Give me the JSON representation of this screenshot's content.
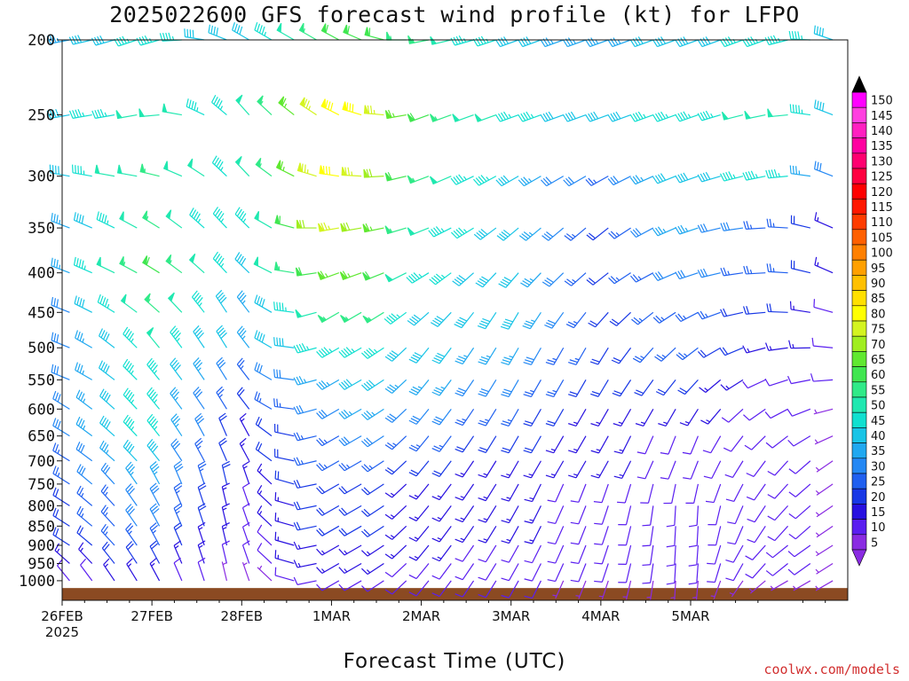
{
  "title": "2025022600 GFS forecast wind profile (kt) for LFPO",
  "credit": "coolwx.com/models",
  "colors": {
    "background": "#ffffff",
    "ground": "#8b4a22",
    "axis": "#111111"
  },
  "chart_data": {
    "type": "wind_barb_profile",
    "title": "2025022600 GFS forecast wind profile (kt) for LFPO",
    "xlabel": "Forecast Time (UTC)",
    "ylabel": "",
    "x_ticks": [
      "26FEB\n2025",
      "27FEB",
      "28FEB",
      "1MAR",
      "2MAR",
      "3MAR",
      "4MAR",
      "5MAR"
    ],
    "x_range_hours": [
      0,
      210
    ],
    "x_step_hours": 6,
    "y_axis": "pressure (hPa), log scale, inverted",
    "y_ticks": [
      200,
      250,
      300,
      350,
      400,
      450,
      500,
      550,
      600,
      650,
      700,
      750,
      800,
      850,
      900,
      950,
      1000
    ],
    "ylim": [
      1060,
      200
    ],
    "surface_pressure_hPa": 1022,
    "colorbar": {
      "units": "kt",
      "levels": [
        5,
        10,
        15,
        20,
        25,
        30,
        35,
        40,
        45,
        50,
        55,
        60,
        65,
        70,
        75,
        80,
        85,
        90,
        95,
        100,
        105,
        110,
        115,
        120,
        125,
        130,
        135,
        140,
        145,
        150
      ],
      "colors": [
        "#8a2be2",
        "#5a1ef0",
        "#2810e0",
        "#1838e6",
        "#2060f0",
        "#2488f4",
        "#20a8f0",
        "#18c4e6",
        "#10e0d0",
        "#20e8b0",
        "#30ea88",
        "#40e650",
        "#60e830",
        "#a0ee20",
        "#d4f420",
        "#ffff00",
        "#ffe000",
        "#ffc000",
        "#ffa000",
        "#ff8000",
        "#ff6000",
        "#ff3c00",
        "#ff1800",
        "#ff0000",
        "#ff0040",
        "#ff0070",
        "#ff00a0",
        "#ff20c0",
        "#ff40e0",
        "#ff00ff"
      ]
    },
    "wind_keyframes": {
      "description": "speed (kt) and direction (deg, meteorological from) at selected forecast hours; interpolated between keyframes",
      "levels_hPa": [
        200,
        250,
        300,
        350,
        400,
        450,
        500,
        550,
        600,
        650,
        700,
        750,
        800,
        850,
        900,
        950,
        1000
      ],
      "hours": [
        0,
        24,
        48,
        72,
        84,
        96,
        120,
        144,
        168,
        192,
        210
      ],
      "speed": [
        [
          35,
          45,
          40,
          60,
          60,
          55,
          40,
          35,
          40,
          45,
          40
        ],
        [
          40,
          50,
          45,
          80,
          80,
          60,
          45,
          40,
          45,
          50,
          35
        ],
        [
          38,
          55,
          45,
          80,
          75,
          55,
          40,
          25,
          40,
          45,
          25
        ],
        [
          35,
          55,
          40,
          75,
          70,
          50,
          40,
          20,
          35,
          25,
          15
        ],
        [
          35,
          60,
          40,
          65,
          65,
          45,
          40,
          20,
          30,
          25,
          10
        ],
        [
          30,
          55,
          35,
          55,
          55,
          40,
          40,
          20,
          25,
          20,
          10
        ],
        [
          30,
          50,
          35,
          45,
          45,
          40,
          35,
          20,
          25,
          15,
          10
        ],
        [
          30,
          45,
          25,
          35,
          40,
          35,
          30,
          20,
          20,
          10,
          10
        ],
        [
          30,
          45,
          20,
          30,
          35,
          30,
          25,
          15,
          15,
          10,
          5
        ],
        [
          30,
          45,
          15,
          25,
          30,
          25,
          20,
          15,
          10,
          10,
          5
        ],
        [
          25,
          40,
          15,
          25,
          25,
          20,
          15,
          15,
          10,
          10,
          5
        ],
        [
          25,
          35,
          15,
          20,
          20,
          15,
          15,
          10,
          10,
          10,
          5
        ],
        [
          20,
          30,
          10,
          20,
          20,
          15,
          15,
          10,
          10,
          10,
          5
        ],
        [
          20,
          30,
          10,
          20,
          20,
          15,
          15,
          10,
          10,
          10,
          5
        ],
        [
          20,
          25,
          10,
          15,
          15,
          15,
          10,
          10,
          10,
          10,
          5
        ],
        [
          15,
          20,
          10,
          15,
          15,
          10,
          10,
          10,
          10,
          10,
          5
        ],
        [
          10,
          15,
          5,
          10,
          10,
          10,
          10,
          5,
          5,
          5,
          5
        ]
      ],
      "direction": [
        [
          260,
          250,
          300,
          300,
          290,
          260,
          250,
          250,
          250,
          250,
          300
        ],
        [
          260,
          260,
          320,
          300,
          280,
          250,
          250,
          250,
          250,
          260,
          300
        ],
        [
          280,
          280,
          320,
          280,
          270,
          250,
          240,
          240,
          250,
          260,
          300
        ],
        [
          290,
          300,
          320,
          260,
          260,
          250,
          230,
          230,
          250,
          270,
          300
        ],
        [
          290,
          300,
          320,
          250,
          250,
          240,
          220,
          230,
          250,
          270,
          300
        ],
        [
          290,
          310,
          330,
          240,
          240,
          230,
          210,
          220,
          240,
          270,
          290
        ],
        [
          290,
          320,
          330,
          240,
          240,
          220,
          210,
          210,
          230,
          260,
          280
        ],
        [
          290,
          320,
          330,
          240,
          240,
          220,
          210,
          210,
          220,
          250,
          270
        ],
        [
          300,
          320,
          330,
          240,
          240,
          220,
          210,
          210,
          210,
          240,
          260
        ],
        [
          300,
          320,
          340,
          240,
          240,
          220,
          210,
          210,
          200,
          230,
          250
        ],
        [
          300,
          320,
          340,
          240,
          240,
          220,
          210,
          210,
          200,
          220,
          240
        ],
        [
          300,
          330,
          350,
          240,
          240,
          220,
          210,
          200,
          190,
          220,
          240
        ],
        [
          300,
          330,
          350,
          240,
          240,
          220,
          210,
          200,
          180,
          220,
          240
        ],
        [
          300,
          330,
          350,
          240,
          240,
          220,
          210,
          200,
          180,
          220,
          240
        ],
        [
          300,
          330,
          350,
          240,
          240,
          220,
          210,
          200,
          180,
          230,
          240
        ],
        [
          310,
          330,
          350,
          240,
          240,
          220,
          210,
          200,
          180,
          230,
          240
        ],
        [
          320,
          330,
          350,
          240,
          240,
          220,
          210,
          200,
          180,
          240,
          240
        ]
      ]
    }
  }
}
